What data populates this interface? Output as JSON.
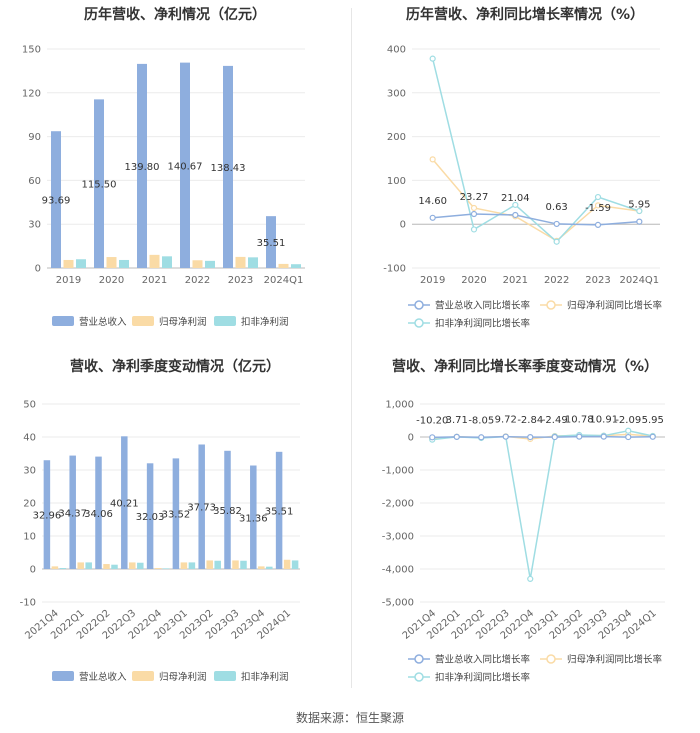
{
  "source": "数据来源：恒生聚源",
  "legend_bar": [
    "营业总收入",
    "归母净利润",
    "扣非净利润"
  ],
  "legend_line": [
    "营业总收入同比增长率",
    "归母净利润同比增长率",
    "扣非净利润同比增长率"
  ],
  "colors": {
    "revenue": "#8eaede",
    "net_profit": "#fadba6",
    "deducted": "#9fdde3",
    "grid": "#ebebeb",
    "axis": "#bbbbbb"
  },
  "chart_data": [
    {
      "type": "bar",
      "title": "历年营收、净利情况（亿元）",
      "categories": [
        "2019",
        "2020",
        "2021",
        "2022",
        "2023",
        "2024Q1"
      ],
      "ylim": [
        0,
        150
      ],
      "yticks": [
        0,
        30,
        60,
        90,
        120,
        150
      ],
      "series": [
        {
          "name": "营业总收入",
          "values": [
            93.69,
            115.5,
            139.8,
            140.67,
            138.43,
            35.51
          ],
          "labels": [
            "93.69",
            "115.50",
            "139.80",
            "140.67",
            "138.43",
            "35.51"
          ]
        },
        {
          "name": "归母净利润",
          "values": [
            5.5,
            7.5,
            9.0,
            5.3,
            7.6,
            2.8
          ]
        },
        {
          "name": "扣非净利润",
          "values": [
            6.0,
            5.5,
            8.0,
            4.9,
            7.3,
            2.6
          ]
        }
      ],
      "legend": "bottom"
    },
    {
      "type": "line",
      "title": "历年营收、净利同比增长率情况（%）",
      "categories": [
        "2019",
        "2020",
        "2021",
        "2022",
        "2023",
        "2024Q1"
      ],
      "ylim": [
        -100,
        400
      ],
      "yticks": [
        -100,
        0,
        100,
        200,
        300,
        400
      ],
      "series": [
        {
          "name": "营业总收入同比增长率",
          "values": [
            14.6,
            23.27,
            21.04,
            0.63,
            -1.59,
            5.95
          ],
          "labels": [
            "14.60",
            "23.27",
            "21.04",
            "0.63",
            "-1.59",
            "5.95"
          ]
        },
        {
          "name": "归母净利润同比增长率",
          "values": [
            148,
            37,
            18,
            -38,
            43,
            30
          ]
        },
        {
          "name": "扣非净利润同比增长率",
          "values": [
            378,
            -12,
            44,
            -40,
            62,
            30
          ]
        }
      ],
      "legend": "bottom"
    },
    {
      "type": "bar",
      "title": "营收、净利季度变动情况（亿元）",
      "categories": [
        "2021Q4",
        "2022Q1",
        "2022Q2",
        "2022Q3",
        "2022Q4",
        "2023Q1",
        "2023Q2",
        "2023Q3",
        "2023Q4",
        "2024Q1"
      ],
      "ylim": [
        -10,
        50
      ],
      "yticks": [
        -10,
        0,
        10,
        20,
        30,
        40,
        50
      ],
      "series": [
        {
          "name": "营业总收入",
          "values": [
            32.96,
            34.37,
            34.06,
            40.21,
            32.03,
            33.52,
            37.73,
            35.82,
            31.36,
            35.51
          ],
          "labels": [
            "32.96",
            "34.37",
            "34.06",
            "40.21",
            "32.03",
            "33.52",
            "37.73",
            "35.82",
            "31.36",
            "35.51"
          ]
        },
        {
          "name": "归母净利润",
          "values": [
            0.8,
            2.0,
            1.5,
            2.0,
            0.3,
            2.0,
            2.6,
            2.6,
            0.8,
            2.8
          ]
        },
        {
          "name": "扣非净利润",
          "values": [
            0.3,
            2.0,
            1.3,
            1.9,
            0.2,
            2.0,
            2.5,
            2.5,
            0.7,
            2.6
          ]
        }
      ],
      "legend": "bottom"
    },
    {
      "type": "line",
      "title": "营收、净利同比增长率季度变动情况（%）",
      "categories": [
        "2021Q4",
        "2022Q1",
        "2022Q2",
        "2022Q3",
        "2022Q4",
        "2023Q1",
        "2023Q2",
        "2023Q3",
        "2023Q4",
        "2024Q1"
      ],
      "ylim": [
        -5000,
        1000
      ],
      "yticks": [
        -5000,
        -4000,
        -3000,
        -2000,
        -1000,
        0,
        1000
      ],
      "ytick_labels": [
        "-5,000",
        "-4,000",
        "-3,000",
        "-2,000",
        "-1,000",
        "0",
        "1,000"
      ],
      "series": [
        {
          "name": "营业总收入同比增长率",
          "values": [
            -10.2,
            3.71,
            -8.05,
            9.72,
            -2.84,
            -2.49,
            10.78,
            10.91,
            -2.09,
            5.95
          ],
          "labels": [
            "-10.20",
            "3.71",
            "-8.05",
            "9.72",
            "-2.84",
            "-2.49",
            "10.78",
            "10.91",
            "-2.09",
            "5.95"
          ]
        },
        {
          "name": "归母净利润同比增长率",
          "values": [
            -60,
            10,
            -20,
            20,
            -60,
            30,
            50,
            40,
            80,
            30
          ]
        },
        {
          "name": "扣非净利润同比增长率",
          "values": [
            -80,
            5,
            -30,
            10,
            -4300,
            20,
            60,
            40,
            190,
            30
          ]
        }
      ],
      "legend": "bottom"
    }
  ]
}
